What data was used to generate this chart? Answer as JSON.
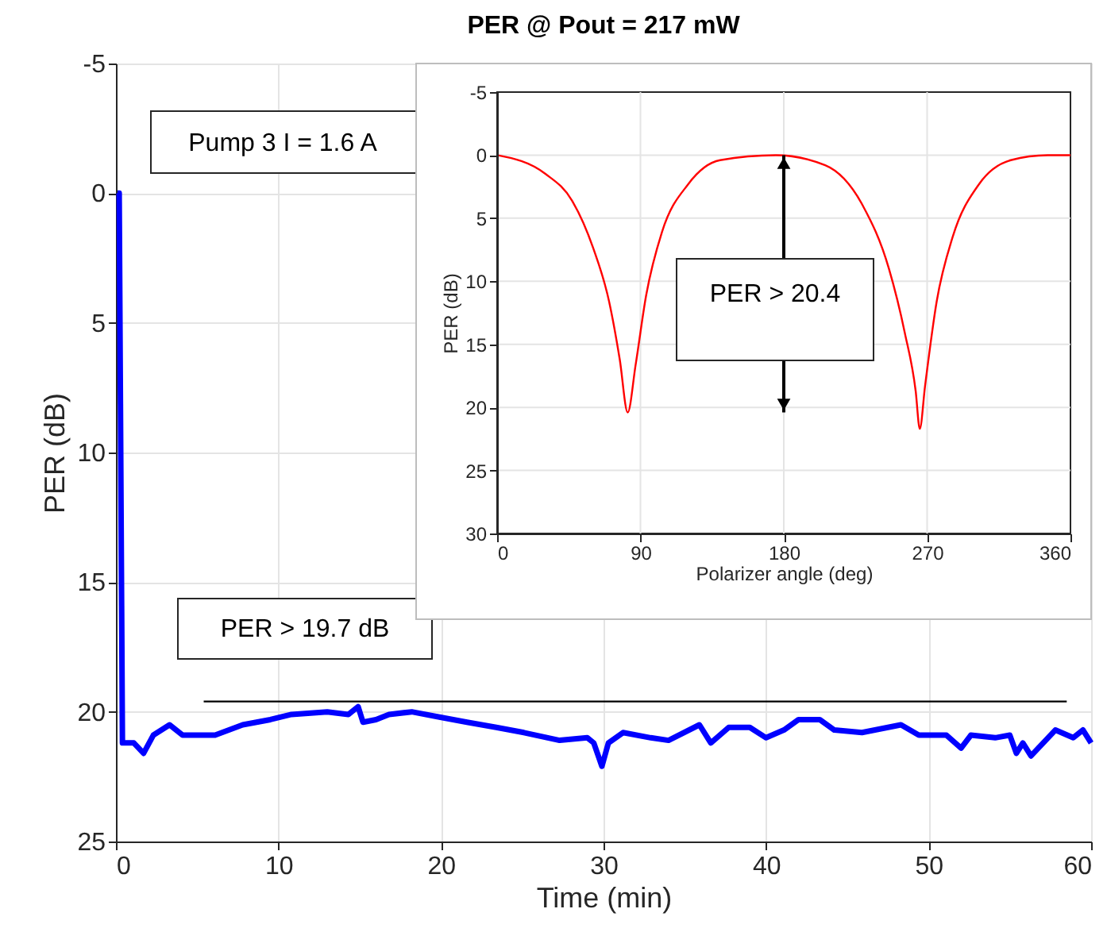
{
  "chart_data": [
    {
      "type": "line",
      "title": "PER @ Pout = 217 mW",
      "xlabel": "Time (min)",
      "ylabel": "PER (dB)",
      "x": [
        0.1,
        0.2,
        0.4,
        1.1,
        1.7,
        2.3,
        3.3,
        4.1,
        6.1,
        7.8,
        9.5,
        10.8,
        13.0,
        14.3,
        14.9,
        15.2,
        16.0,
        16.8,
        18.2,
        19.9,
        21.6,
        23.4,
        25.1,
        27.3,
        29.0,
        29.4,
        29.9,
        30.3,
        31.2,
        32.9,
        34.0,
        35.9,
        36.6,
        37.7,
        39.0,
        40.0,
        41.1,
        42.0,
        43.3,
        44.2,
        45.9,
        48.3,
        49.4,
        51.1,
        52.0,
        52.6,
        54.1,
        55.0,
        55.4,
        55.8,
        56.3,
        57.8,
        58.9,
        59.5,
        60.0
      ],
      "series": [
        {
          "color": "#0000ff",
          "values": [
            0,
            0,
            21.2,
            21.2,
            21.6,
            20.9,
            20.5,
            20.9,
            20.9,
            20.5,
            20.3,
            20.1,
            20.0,
            20.1,
            19.8,
            20.4,
            20.3,
            20.1,
            20.0,
            20.2,
            20.4,
            20.6,
            20.8,
            21.1,
            21.0,
            21.2,
            22.1,
            21.2,
            20.8,
            21.0,
            21.1,
            20.5,
            21.2,
            20.6,
            20.6,
            21.0,
            20.7,
            20.3,
            20.3,
            20.7,
            20.8,
            20.5,
            20.9,
            20.9,
            21.4,
            20.9,
            21.0,
            20.9,
            21.6,
            21.2,
            21.7,
            20.7,
            21.0,
            20.7,
            21.2
          ]
        }
      ],
      "xlim": [
        0,
        60
      ],
      "xticks": [
        0,
        10,
        20,
        30,
        40,
        50,
        60
      ],
      "ylim": [
        25,
        -5
      ],
      "yticks": [
        -5,
        0,
        5,
        10,
        15,
        20,
        25
      ],
      "grid": true,
      "line_style": "solid",
      "marker": "none",
      "ref_lines": [
        {
          "axis": "y",
          "value": 19.6,
          "label": "PER > 19.7 dB",
          "color": "#000000"
        }
      ],
      "annotations": [
        "Pump 3 I = 1.6 A"
      ]
    },
    {
      "type": "line",
      "xlabel": "Polarizer angle (deg)",
      "ylabel": "PER (dB)",
      "x": [
        0,
        30.5,
        47,
        60.4,
        70.3,
        77,
        82,
        87,
        93.6,
        103.5,
        120,
        140,
        175,
        206,
        229.6,
        246,
        256,
        262.8,
        265.4,
        268.7,
        276,
        286,
        302.6,
        322.5,
        345.7,
        360
      ],
      "series": [
        {
          "color": "#ff0000",
          "values": [
            0,
            1.5,
            3.6,
            7.4,
            11.6,
            16.2,
            20.4,
            16.6,
            11.1,
            6.1,
            2.3,
            0.4,
            0,
            0.8,
            4.0,
            9.0,
            14.1,
            18.7,
            21.7,
            18.3,
            11.6,
            6.5,
            2.3,
            0.4,
            0,
            0
          ]
        }
      ],
      "xlim": [
        0,
        360
      ],
      "xticks": [
        0,
        90,
        180,
        270,
        360
      ],
      "ylim": [
        30,
        -5
      ],
      "yticks": [
        -5,
        0,
        5,
        10,
        15,
        20,
        25,
        30
      ],
      "grid": true,
      "line_style": "solid",
      "marker": "none",
      "annotations": [
        "PER > 20.4"
      ]
    }
  ]
}
